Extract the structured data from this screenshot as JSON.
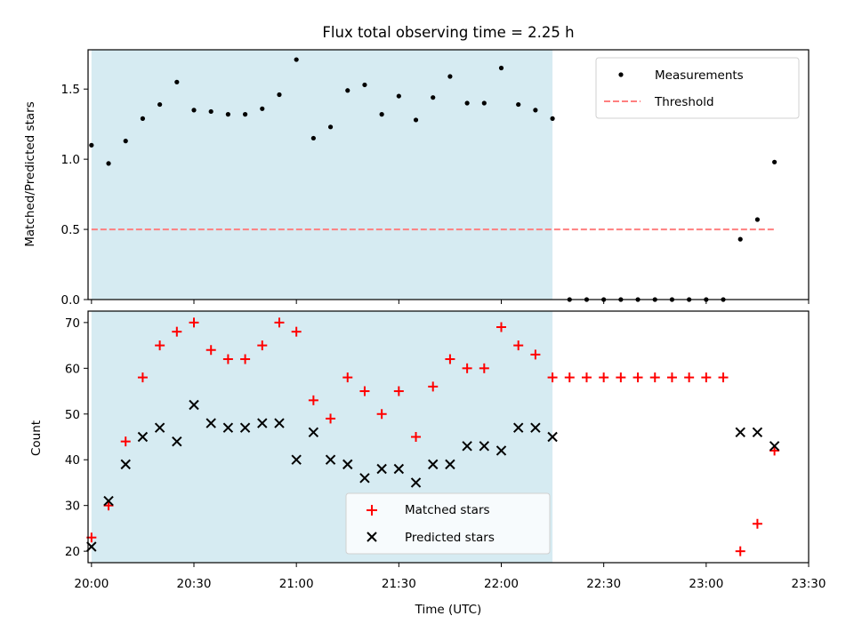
{
  "figure_title": "Flux total observing time = 2.25 h",
  "colors": {
    "shade": "#add8e6",
    "measurement": "#000000",
    "threshold": "#ff7f7f",
    "matched": "#ff0000",
    "predicted": "#000000"
  },
  "chart_data": [
    {
      "type": "scatter",
      "title": "Flux total observing time = 2.25 h",
      "xlabel": "",
      "ylabel": "Matched/Predicted stars",
      "xlim": [
        "19:59",
        "23:30"
      ],
      "ylim": [
        0,
        1.78
      ],
      "ytick_labels": [
        "0.0",
        "0.5",
        "1.0",
        "1.5"
      ],
      "yticks": [
        0,
        0.5,
        1.0,
        1.5
      ],
      "grid": false,
      "legend": "top-right",
      "shaded_span": [
        "20:00",
        "22:15"
      ],
      "series": [
        {
          "name": "Measurements",
          "marker": "dot",
          "x": [
            "20:00",
            "20:05",
            "20:10",
            "20:15",
            "20:20",
            "20:25",
            "20:30",
            "20:35",
            "20:40",
            "20:45",
            "20:50",
            "20:55",
            "21:00",
            "21:05",
            "21:10",
            "21:15",
            "21:20",
            "21:25",
            "21:30",
            "21:35",
            "21:40",
            "21:45",
            "21:50",
            "21:55",
            "22:00",
            "22:05",
            "22:10",
            "22:15",
            "22:20",
            "22:25",
            "22:30",
            "22:35",
            "22:40",
            "22:45",
            "22:50",
            "22:55",
            "23:00",
            "23:05",
            "23:10",
            "23:15",
            "23:20"
          ],
          "y": [
            1.1,
            0.97,
            1.13,
            1.29,
            1.39,
            1.55,
            1.35,
            1.34,
            1.32,
            1.32,
            1.36,
            1.46,
            1.71,
            1.15,
            1.23,
            1.49,
            1.53,
            1.32,
            1.45,
            1.28,
            1.44,
            1.59,
            1.4,
            1.4,
            1.65,
            1.39,
            1.35,
            1.29,
            0,
            0,
            0,
            0,
            0,
            0,
            0,
            0,
            0,
            0,
            0.43,
            0.57,
            0.98
          ]
        },
        {
          "name": "Threshold",
          "marker": "dashed-line",
          "x": [
            "20:00",
            "23:20"
          ],
          "y": [
            0.5,
            0.5
          ]
        }
      ]
    },
    {
      "type": "scatter",
      "title": "",
      "xlabel": "Time (UTC)",
      "ylabel": "Count",
      "xlim": [
        "19:59",
        "23:30"
      ],
      "ylim": [
        17.5,
        72.5
      ],
      "ytick_labels": [
        "20",
        "30",
        "40",
        "50",
        "60",
        "70"
      ],
      "yticks": [
        20,
        30,
        40,
        50,
        60,
        70
      ],
      "xtick_labels": [
        "20:00",
        "20:30",
        "21:00",
        "21:30",
        "22:00",
        "22:30",
        "23:00",
        "23:30"
      ],
      "xticks": [
        "20:00",
        "20:30",
        "21:00",
        "21:30",
        "22:00",
        "22:30",
        "23:00",
        "23:30"
      ],
      "grid": false,
      "legend": "lower-center",
      "shaded_span": [
        "20:00",
        "22:15"
      ],
      "series": [
        {
          "name": "Matched stars",
          "marker": "plus",
          "x": [
            "20:00",
            "20:05",
            "20:10",
            "20:15",
            "20:20",
            "20:25",
            "20:30",
            "20:35",
            "20:40",
            "20:45",
            "20:50",
            "20:55",
            "21:00",
            "21:05",
            "21:10",
            "21:15",
            "21:20",
            "21:25",
            "21:30",
            "21:35",
            "21:40",
            "21:45",
            "21:50",
            "21:55",
            "22:00",
            "22:05",
            "22:10",
            "22:15",
            "22:20",
            "22:25",
            "22:30",
            "22:35",
            "22:40",
            "22:45",
            "22:50",
            "22:55",
            "23:00",
            "23:05",
            "23:10",
            "23:15",
            "23:20"
          ],
          "y": [
            23,
            30,
            44,
            58,
            65,
            68,
            70,
            64,
            62,
            62,
            65,
            70,
            68,
            53,
            49,
            58,
            55,
            50,
            55,
            45,
            56,
            62,
            60,
            60,
            69,
            65,
            63,
            58,
            58,
            58,
            58,
            58,
            58,
            58,
            58,
            58,
            58,
            58,
            20,
            26,
            42
          ]
        },
        {
          "name": "Predicted stars",
          "marker": "x",
          "x": [
            "20:00",
            "20:05",
            "20:10",
            "20:15",
            "20:20",
            "20:25",
            "20:30",
            "20:35",
            "20:40",
            "20:45",
            "20:50",
            "20:55",
            "21:00",
            "21:05",
            "21:10",
            "21:15",
            "21:20",
            "21:25",
            "21:30",
            "21:35",
            "21:40",
            "21:45",
            "21:50",
            "21:55",
            "22:00",
            "22:05",
            "22:10",
            "22:15",
            "23:10",
            "23:15",
            "23:20"
          ],
          "y": [
            21,
            31,
            39,
            45,
            47,
            44,
            52,
            48,
            47,
            47,
            48,
            48,
            40,
            46,
            40,
            39,
            36,
            38,
            38,
            35,
            39,
            39,
            43,
            43,
            42,
            47,
            47,
            45,
            46,
            46,
            43
          ]
        }
      ]
    }
  ]
}
